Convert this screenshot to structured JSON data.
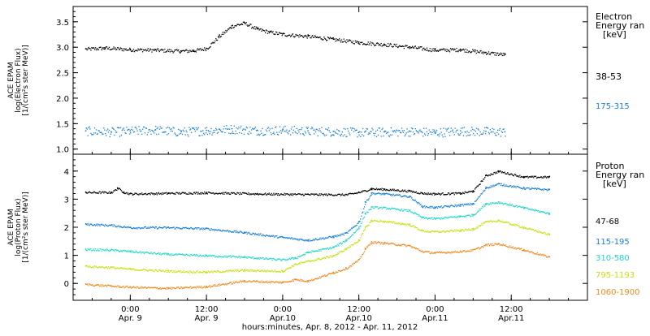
{
  "colors": {
    "black": "#000000",
    "blue": "#1a7fd4",
    "cyan": "#22d6c8",
    "yellow": "#c8e010",
    "orange": "#f08a1e"
  },
  "chart_data": [
    {
      "type": "scatter",
      "panel": "electron",
      "ylabel_lines": [
        "ACE EPAM",
        "log(Electron Flux)",
        "[1/(cm²s ster MeV)]"
      ],
      "ylim": [
        0.9,
        3.8
      ],
      "y_ticks": [
        "1.0",
        "1.5",
        "2.0",
        "2.5",
        "3.0",
        "3.5"
      ],
      "y_tick_values": [
        1.0,
        1.5,
        2.0,
        2.5,
        3.0,
        3.5
      ],
      "legend_title": [
        "Electron",
        "Energy ran",
        "[keV]"
      ],
      "series": [
        {
          "name": "38-53",
          "color": "black",
          "x": [
            -7,
            -4,
            0,
            4,
            8,
            10,
            12,
            14,
            16,
            18,
            20,
            22,
            24,
            28,
            32,
            36,
            40,
            44,
            48,
            52,
            56,
            59
          ],
          "y": [
            2.97,
            2.99,
            2.96,
            2.95,
            2.93,
            2.94,
            2.98,
            3.22,
            3.42,
            3.48,
            3.36,
            3.3,
            3.26,
            3.22,
            3.16,
            3.1,
            3.06,
            3.01,
            2.95,
            2.96,
            2.9,
            2.86
          ]
        },
        {
          "name": "175-315",
          "color": "blue",
          "x": [
            -7,
            -3,
            0,
            4,
            8,
            12,
            16,
            20,
            24,
            28,
            32,
            36,
            40,
            44,
            48,
            52,
            56,
            59
          ],
          "y": [
            1.36,
            1.34,
            1.36,
            1.38,
            1.34,
            1.37,
            1.4,
            1.37,
            1.38,
            1.36,
            1.35,
            1.33,
            1.34,
            1.35,
            1.33,
            1.36,
            1.35,
            1.34
          ]
        }
      ]
    },
    {
      "type": "scatter",
      "panel": "proton",
      "ylabel_lines": [
        "ACE EPAM",
        "log(Proton Flux)",
        "[1/(cm²s ster MeV)]"
      ],
      "ylim": [
        -0.6,
        4.6
      ],
      "y_ticks": [
        "0",
        "1",
        "2",
        "3",
        "4"
      ],
      "y_tick_values": [
        0,
        1,
        2,
        3,
        4
      ],
      "legend_title": [
        "Proton",
        "Energy ran",
        "[keV]"
      ],
      "xlabel": "hours:minutes, Apr.  8, 2012 - Apr. 11, 2012",
      "x_ticks": [
        {
          "x": 0,
          "top": "0:00",
          "bottom": "Apr. 9"
        },
        {
          "x": 12,
          "top": "12:00",
          "bottom": "Apr. 9"
        },
        {
          "x": 24,
          "top": "0:00",
          "bottom": "Apr.10"
        },
        {
          "x": 36,
          "top": "12:00",
          "bottom": "Apr.10"
        },
        {
          "x": 48,
          "top": "0:00",
          "bottom": "Apr.11"
        },
        {
          "x": 60,
          "top": "12:00",
          "bottom": "Apr.11"
        }
      ],
      "xlim": [
        -9,
        72
      ],
      "series": [
        {
          "name": "47-68",
          "color": "black",
          "x": [
            -7,
            -3,
            -2,
            -1,
            0,
            6,
            12,
            20,
            28,
            34,
            36,
            38,
            40,
            44,
            46,
            48,
            52,
            54,
            56,
            58,
            62,
            66
          ],
          "y": [
            3.25,
            3.25,
            3.4,
            3.25,
            3.2,
            3.22,
            3.24,
            3.2,
            3.18,
            3.17,
            3.25,
            3.38,
            3.36,
            3.3,
            3.22,
            3.2,
            3.22,
            3.3,
            3.85,
            4.0,
            3.8,
            3.8
          ]
        },
        {
          "name": "115-195",
          "color": "blue",
          "x": [
            -7,
            -3,
            0,
            6,
            12,
            18,
            24,
            28,
            32,
            34,
            36,
            37,
            38,
            40,
            44,
            46,
            48,
            52,
            54,
            56,
            58,
            62,
            66
          ],
          "y": [
            2.12,
            2.08,
            2.0,
            2.0,
            1.96,
            1.82,
            1.65,
            1.55,
            1.68,
            1.8,
            2.2,
            2.9,
            3.22,
            3.2,
            3.1,
            2.75,
            2.72,
            2.8,
            2.85,
            3.42,
            3.55,
            3.4,
            3.35
          ]
        },
        {
          "name": "310-580",
          "color": "cyan",
          "x": [
            -7,
            -3,
            0,
            6,
            12,
            18,
            24,
            26,
            28,
            32,
            34,
            36,
            37,
            38,
            40,
            44,
            46,
            48,
            52,
            54,
            56,
            58,
            62,
            66
          ],
          "y": [
            1.22,
            1.2,
            1.15,
            1.05,
            1.0,
            0.95,
            0.85,
            0.92,
            1.12,
            1.3,
            1.55,
            2.0,
            2.5,
            2.72,
            2.7,
            2.6,
            2.35,
            2.32,
            2.4,
            2.45,
            2.85,
            2.9,
            2.7,
            2.5
          ]
        },
        {
          "name": "795-1193",
          "color": "yellow",
          "x": [
            -7,
            -3,
            0,
            6,
            12,
            18,
            24,
            26,
            28,
            32,
            34,
            36,
            37,
            38,
            40,
            44,
            46,
            48,
            52,
            54,
            56,
            58,
            62,
            66
          ],
          "y": [
            0.62,
            0.58,
            0.52,
            0.45,
            0.42,
            0.48,
            0.45,
            0.7,
            0.8,
            1.0,
            1.25,
            1.55,
            2.0,
            2.25,
            2.22,
            2.1,
            1.88,
            1.85,
            1.9,
            1.95,
            2.2,
            2.25,
            2.0,
            1.75
          ]
        },
        {
          "name": "1060-1900",
          "color": "orange",
          "x": [
            -7,
            -3,
            0,
            6,
            12,
            18,
            24,
            26,
            28,
            32,
            34,
            36,
            37,
            38,
            40,
            44,
            46,
            48,
            52,
            54,
            56,
            58,
            62,
            66
          ],
          "y": [
            -0.02,
            -0.08,
            -0.12,
            -0.16,
            -0.1,
            0.1,
            0.05,
            0.15,
            0.1,
            0.4,
            0.55,
            0.85,
            1.25,
            1.48,
            1.45,
            1.35,
            1.15,
            1.1,
            1.15,
            1.2,
            1.38,
            1.42,
            1.2,
            0.95
          ]
        }
      ]
    }
  ]
}
